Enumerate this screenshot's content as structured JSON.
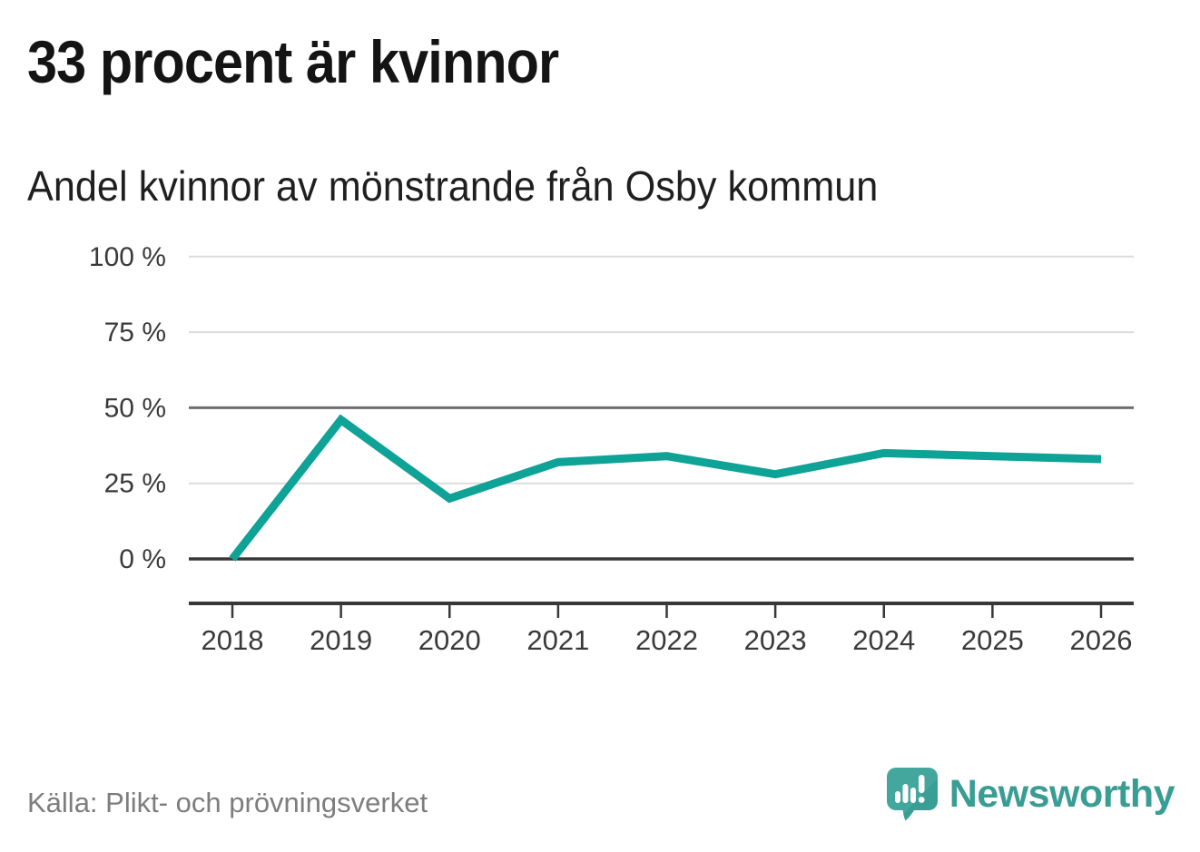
{
  "header": {
    "title": "33 procent är kvinnor",
    "subtitle": "Andel kvinnor av mönstrande från Osby kommun"
  },
  "chart_data": {
    "type": "line",
    "title": "33 procent är kvinnor",
    "subtitle": "Andel kvinnor av mönstrande från Osby kommun",
    "categories": [
      "2018",
      "2019",
      "2020",
      "2021",
      "2022",
      "2023",
      "2024",
      "2025",
      "2026"
    ],
    "series": [
      {
        "name": "Andel kvinnor av mönstrande",
        "values": [
          0,
          46,
          20,
          32,
          34,
          28,
          35,
          34,
          33
        ]
      }
    ],
    "xlabel": "",
    "ylabel": "",
    "ylim": [
      0,
      100
    ],
    "yticks": [
      {
        "value": 0,
        "label": "0 %"
      },
      {
        "value": 25,
        "label": "25 %"
      },
      {
        "value": 50,
        "label": "50 %"
      },
      {
        "value": 75,
        "label": "75 %"
      },
      {
        "value": 100,
        "label": "100 %"
      }
    ],
    "grid": "horizontal",
    "legend_position": "none"
  },
  "footer": {
    "source": "Källa: Plikt- och prövningsverket",
    "brand": "Newsworthy"
  },
  "icons": {
    "logo": "newsworthy-speech-bubble-barchart-icon"
  },
  "colors": {
    "accent_line": "#0fa296",
    "title_text": "#141414",
    "subtitle_text": "#1f1f1f",
    "axis_text": "#3a3a3a",
    "grid_light": "#dcdcdc",
    "grid_mid": "#6e6e6e",
    "axis_dark": "#383838",
    "source_text": "#7d7d7d",
    "logo_teal": "#43a79d",
    "logo_teal_dark": "#2f968c",
    "wordmark_teal": "#399d94"
  }
}
